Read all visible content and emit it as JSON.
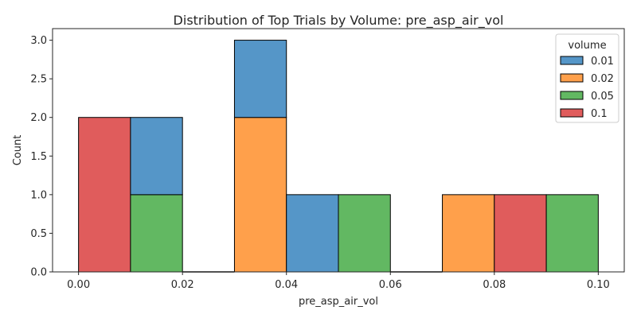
{
  "chart_data": {
    "type": "bar",
    "title": "Distribution of Top Trials by Volume: pre_asp_air_vol",
    "xlabel": "pre_asp_air_vol",
    "ylabel": "Count",
    "xlim": [
      -0.005,
      0.105
    ],
    "ylim": [
      0,
      3.15
    ],
    "xticks": [
      0.0,
      0.02,
      0.04,
      0.06,
      0.08,
      0.1
    ],
    "xtick_labels": [
      "0.00",
      "0.02",
      "0.04",
      "0.06",
      "0.08",
      "0.10"
    ],
    "yticks": [
      0.0,
      0.5,
      1.0,
      1.5,
      2.0,
      2.5,
      3.0
    ],
    "ytick_labels": [
      "0.0",
      "0.5",
      "1.0",
      "1.5",
      "2.0",
      "2.5",
      "3.0"
    ],
    "grid": false,
    "stacked": true,
    "bin_edges": [
      0.0,
      0.01,
      0.02,
      0.03,
      0.04,
      0.05,
      0.06,
      0.07,
      0.08,
      0.09,
      0.1
    ],
    "legend": {
      "title": "volume",
      "placement": "top-right"
    },
    "series": [
      {
        "name": "0.01",
        "color": "#5596c8",
        "values": [
          0,
          1,
          0,
          1,
          1,
          0,
          0,
          0,
          0,
          0
        ]
      },
      {
        "name": "0.02",
        "color": "#ffa04b",
        "values": [
          0,
          0,
          0,
          2,
          0,
          0,
          0,
          1,
          0,
          0
        ]
      },
      {
        "name": "0.05",
        "color": "#62b862",
        "values": [
          0,
          1,
          0,
          0,
          0,
          1,
          0,
          0,
          0,
          1
        ]
      },
      {
        "name": "0.1",
        "color": "#e05c5c",
        "values": [
          2,
          0,
          0,
          0,
          0,
          0,
          0,
          0,
          1,
          0
        ]
      }
    ],
    "stack_order_bottom_to_top": [
      "0.1",
      "0.05",
      "0.02",
      "0.01"
    ]
  }
}
